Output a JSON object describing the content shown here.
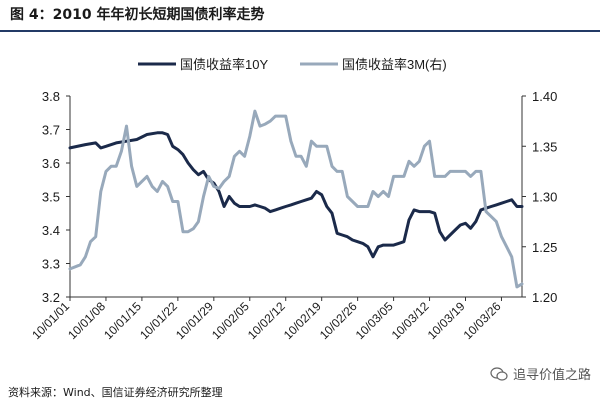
{
  "figure": {
    "title": "图 4：2010 年年初长短期国债利率走势",
    "source": "资料来源：Wind、国信证券经济研究所整理",
    "watermark": "追寻价值之路",
    "watermark_icon": "wechat-icon"
  },
  "colors": {
    "series_10y": "#1b2a4a",
    "series_3m": "#98a9bb",
    "axis": "#333333",
    "title_rule": "#233a66"
  },
  "chart_data": {
    "type": "line",
    "x_tick_labels": [
      "10/01/01",
      "10/01/08",
      "10/01/15",
      "10/01/22",
      "10/01/29",
      "10/02/05",
      "10/02/12",
      "10/02/19",
      "10/02/26",
      "10/03/05",
      "10/03/12",
      "10/03/19",
      "10/03/26"
    ],
    "x_range": [
      0,
      88
    ],
    "y_left": {
      "range": [
        3.2,
        3.8
      ],
      "ticks": [
        "3.2",
        "3.3",
        "3.4",
        "3.5",
        "3.6",
        "3.7",
        "3.8"
      ]
    },
    "y_right": {
      "range": [
        1.2,
        1.4
      ],
      "ticks": [
        "1.20",
        "1.25",
        "1.30",
        "1.35",
        "1.40"
      ]
    },
    "grid": false,
    "legend": "top-center",
    "series": [
      {
        "name": "国债收益率10Y",
        "axis": "left",
        "color": "#1b2a4a",
        "x": [
          0,
          3,
          5,
          6,
          7,
          9,
          11,
          13,
          15,
          17,
          18,
          19,
          20,
          21,
          22,
          23,
          24,
          25,
          26,
          27,
          28,
          29,
          30,
          31,
          32,
          33,
          34,
          35,
          36,
          37,
          38,
          39,
          40,
          41,
          42,
          43,
          44,
          45,
          46,
          47,
          48,
          49,
          50,
          51,
          52,
          53,
          54,
          55,
          56,
          57,
          58,
          59,
          60,
          61,
          62,
          63,
          64,
          65,
          66,
          67,
          68,
          69,
          70,
          71,
          72,
          73,
          74,
          75,
          76,
          77,
          78,
          79,
          80,
          81,
          82,
          83,
          84,
          85,
          86,
          87,
          88
        ],
        "y": [
          3.645,
          3.655,
          3.66,
          3.645,
          3.65,
          3.66,
          3.665,
          3.67,
          3.685,
          3.69,
          3.69,
          3.685,
          3.65,
          3.64,
          3.625,
          3.6,
          3.58,
          3.565,
          3.575,
          3.55,
          3.54,
          3.515,
          3.47,
          3.5,
          3.48,
          3.47,
          3.47,
          3.47,
          3.475,
          3.47,
          3.465,
          3.455,
          3.46,
          3.465,
          3.47,
          3.475,
          3.48,
          3.485,
          3.49,
          3.495,
          3.515,
          3.505,
          3.47,
          3.45,
          3.39,
          3.385,
          3.38,
          3.37,
          3.365,
          3.36,
          3.35,
          3.32,
          3.35,
          3.355,
          3.355,
          3.355,
          3.36,
          3.365,
          3.43,
          3.46,
          3.455,
          3.455,
          3.455,
          3.45,
          3.395,
          3.37,
          3.385,
          3.4,
          3.415,
          3.42,
          3.405,
          3.425,
          3.46,
          3.465,
          3.47,
          3.475,
          3.48,
          3.485,
          3.49,
          3.47,
          3.47
        ]
      },
      {
        "name": "国债收益率3M(右)",
        "axis": "right",
        "color": "#98a9bb",
        "x": [
          0,
          2,
          3,
          4,
          5,
          6,
          7,
          8,
          9,
          10,
          11,
          12,
          13,
          14,
          15,
          16,
          17,
          18,
          19,
          20,
          21,
          22,
          23,
          24,
          25,
          26,
          27,
          28,
          29,
          30,
          31,
          32,
          33,
          34,
          35,
          36,
          37,
          38,
          39,
          40,
          41,
          42,
          43,
          44,
          45,
          46,
          47,
          48,
          49,
          50,
          51,
          52,
          53,
          54,
          55,
          56,
          57,
          58,
          59,
          60,
          61,
          62,
          63,
          64,
          65,
          66,
          67,
          68,
          69,
          70,
          71,
          72,
          73,
          74,
          75,
          76,
          77,
          78,
          79,
          80,
          81,
          82,
          83,
          84,
          85,
          86,
          87,
          88
        ],
        "y": [
          1.228,
          1.232,
          1.24,
          1.255,
          1.26,
          1.305,
          1.325,
          1.33,
          1.33,
          1.345,
          1.37,
          1.33,
          1.31,
          1.315,
          1.32,
          1.31,
          1.305,
          1.315,
          1.31,
          1.295,
          1.295,
          1.265,
          1.265,
          1.268,
          1.275,
          1.3,
          1.32,
          1.31,
          1.308,
          1.315,
          1.32,
          1.34,
          1.345,
          1.34,
          1.36,
          1.385,
          1.37,
          1.372,
          1.375,
          1.38,
          1.38,
          1.38,
          1.355,
          1.34,
          1.34,
          1.33,
          1.355,
          1.35,
          1.35,
          1.35,
          1.33,
          1.325,
          1.325,
          1.3,
          1.295,
          1.29,
          1.29,
          1.29,
          1.305,
          1.3,
          1.305,
          1.3,
          1.32,
          1.32,
          1.32,
          1.335,
          1.33,
          1.335,
          1.35,
          1.355,
          1.32,
          1.32,
          1.32,
          1.325,
          1.325,
          1.325,
          1.325,
          1.32,
          1.325,
          1.325,
          1.285,
          1.28,
          1.275,
          1.26,
          1.25,
          1.24,
          1.21,
          1.213
        ]
      }
    ]
  }
}
